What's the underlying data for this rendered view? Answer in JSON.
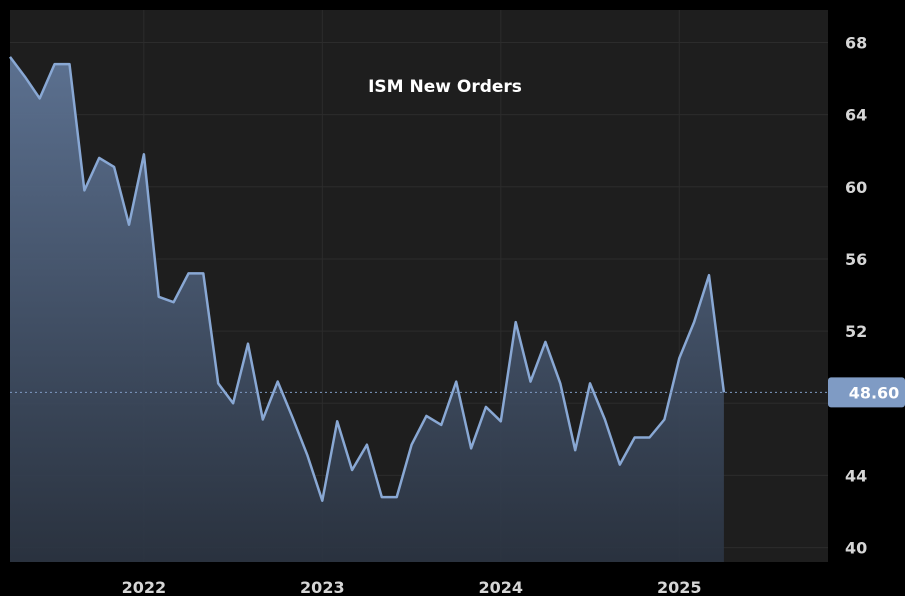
{
  "colors": {
    "background": "#000000",
    "plot_background": "#1e1e1e",
    "grid": "#2c2c2c",
    "line": "#89a8d4",
    "fill_top": "#5f7596",
    "fill_bottom": "#2b3442",
    "badge": "#7f9bc4",
    "ref_line": "#7f9bc4"
  },
  "chart_data": {
    "type": "area",
    "title": "ISM New Orders",
    "xlabel": "",
    "ylabel": "",
    "ylim": [
      39.2,
      69.8
    ],
    "y_ticks": [
      40,
      44,
      48,
      52,
      56,
      60,
      64,
      68
    ],
    "y_tick_labels": [
      "40",
      "44",
      "",
      "52",
      "56",
      "60",
      "64",
      "68"
    ],
    "x_range": [
      "2021-04",
      "2025-11"
    ],
    "x_ticks": [
      {
        "date": "2022-01",
        "label": "2022"
      },
      {
        "date": "2023-01",
        "label": "2023"
      },
      {
        "date": "2024-01",
        "label": "2024"
      },
      {
        "date": "2025-01",
        "label": "2025"
      }
    ],
    "grid": true,
    "last_value_label": "48.60",
    "reference_value": 48.6,
    "series": [
      {
        "x": [
          "2021-04",
          "2021-05",
          "2021-06",
          "2021-07",
          "2021-08",
          "2021-09",
          "2021-10",
          "2021-11",
          "2021-12",
          "2022-01",
          "2022-02",
          "2022-03",
          "2022-04",
          "2022-05",
          "2022-06",
          "2022-07",
          "2022-08",
          "2022-09",
          "2022-10",
          "2022-11",
          "2022-12",
          "2023-01",
          "2023-02",
          "2023-03",
          "2023-04",
          "2023-05",
          "2023-06",
          "2023-07",
          "2023-08",
          "2023-09",
          "2023-10",
          "2023-11",
          "2023-12",
          "2024-01",
          "2024-02",
          "2024-03",
          "2024-04",
          "2024-05",
          "2024-06",
          "2024-07",
          "2024-08",
          "2024-09",
          "2024-10",
          "2024-11",
          "2024-12",
          "2025-01",
          "2025-02",
          "2025-03"
        ],
        "values": [
          67.2,
          66.1,
          64.9,
          66.8,
          66.8,
          59.8,
          61.6,
          61.1,
          57.9,
          61.8,
          53.9,
          53.6,
          55.2,
          55.2,
          49.1,
          48.0,
          51.3,
          47.1,
          49.2,
          47.2,
          45.1,
          42.6,
          47.0,
          44.3,
          45.7,
          42.8,
          42.8,
          45.7,
          47.3,
          46.8,
          49.2,
          45.5,
          47.8,
          47.0,
          52.5,
          49.2,
          51.4,
          49.1,
          45.4,
          49.1,
          47.1,
          44.6,
          46.1,
          46.1,
          47.1,
          50.5,
          52.5,
          55.1
        ]
      }
    ],
    "last_point": {
      "x": "2025-04",
      "value": 48.6
    }
  }
}
